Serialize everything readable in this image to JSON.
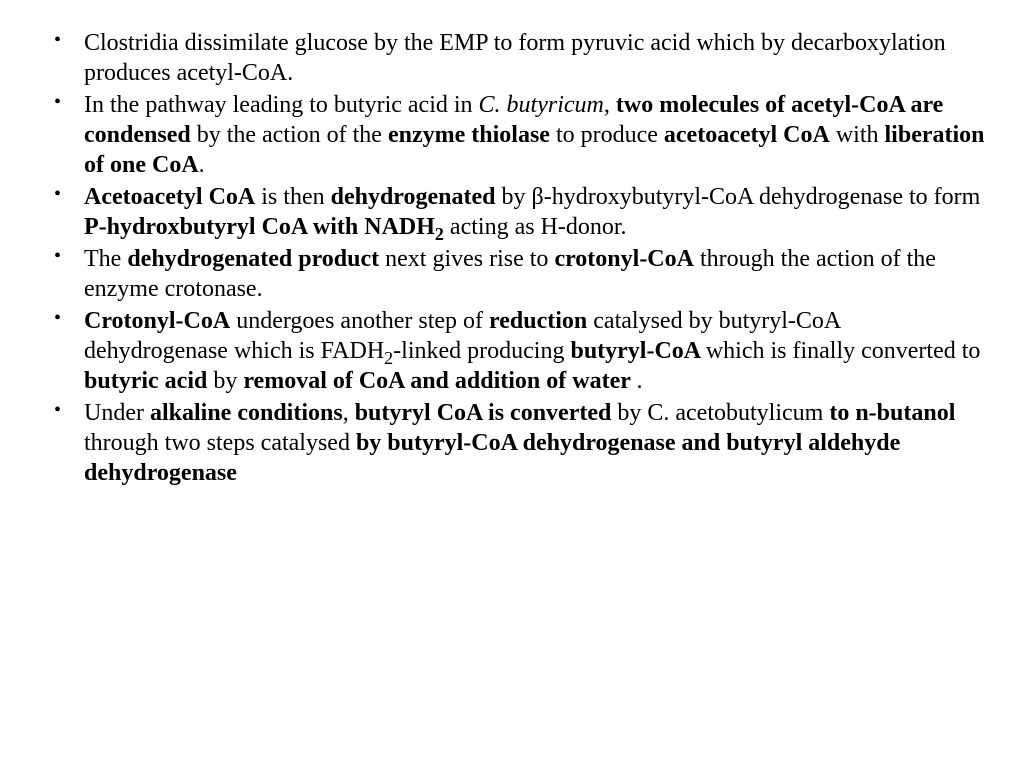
{
  "background_color": "#ffffff",
  "text_color": "#000000",
  "font_family": "Times New Roman",
  "font_size_pt": 18,
  "bullets": [
    {
      "runs": [
        {
          "t": "Clostridia dissimilate glucose by the EMP to form pyruvic acid which by decarboxylation produces acetyl-CoA."
        }
      ]
    },
    {
      "runs": [
        {
          "t": "In the pathway leading to butyric acid in "
        },
        {
          "t": "C. butyricum",
          "i": true
        },
        {
          "t": ", "
        },
        {
          "t": "two molecules of acetyl-CoA are condensed",
          "b": true
        },
        {
          "t": " by the action of the "
        },
        {
          "t": "enzyme thiolase",
          "b": true
        },
        {
          "t": " to produce "
        },
        {
          "t": "acetoacetyl CoA",
          "b": true
        },
        {
          "t": " with "
        },
        {
          "t": "liberation of one CoA",
          "b": true
        },
        {
          "t": "."
        }
      ]
    },
    {
      "runs": [
        {
          "t": "Acetoacetyl CoA",
          "b": true
        },
        {
          "t": " is then "
        },
        {
          "t": "dehydrogenated",
          "b": true
        },
        {
          "t": " by β-hydroxybutyryl-CoA dehydrogenase to form "
        },
        {
          "t": "P-hydroxbutyryl CoA with NADH",
          "b": true
        },
        {
          "t": "2",
          "b": true,
          "sub": true
        },
        {
          "t": " acting as H-donor."
        }
      ]
    },
    {
      "runs": [
        {
          "t": "The "
        },
        {
          "t": "dehydrogenated product",
          "b": true
        },
        {
          "t": " next gives rise to "
        },
        {
          "t": "crotonyl-CoA",
          "b": true
        },
        {
          "t": " through the action of the enzyme crotonase."
        }
      ]
    },
    {
      "runs": [
        {
          "t": "Crotonyl-CoA",
          "b": true
        },
        {
          "t": " undergoes another step of "
        },
        {
          "t": "reduction",
          "b": true
        },
        {
          "t": " catalysed by butyryl-CoA dehydrogenase which is FADH"
        },
        {
          "t": "2",
          "sub": true
        },
        {
          "t": "-linked producing "
        },
        {
          "t": "butyryl-CoA ",
          "b": true
        },
        {
          "t": " which is  finally converted to "
        },
        {
          "t": "butyric acid",
          "b": true
        },
        {
          "t": " by "
        },
        {
          "t": "removal of CoA and addition of water ",
          "b": true
        },
        {
          "t": "."
        }
      ]
    },
    {
      "runs": [
        {
          "t": "Under "
        },
        {
          "t": "alkaline conditions",
          "b": true
        },
        {
          "t": ", "
        },
        {
          "t": "butyryl CoA is converted",
          "b": true
        },
        {
          "t": " by C. acetobutylicum "
        },
        {
          "t": "to n-butanol",
          "b": true
        },
        {
          "t": " through two steps catalysed "
        },
        {
          "t": "by butyryl-CoA dehydrogenase and butyryl aldehyde dehydrogenase",
          "b": true
        }
      ]
    }
  ]
}
